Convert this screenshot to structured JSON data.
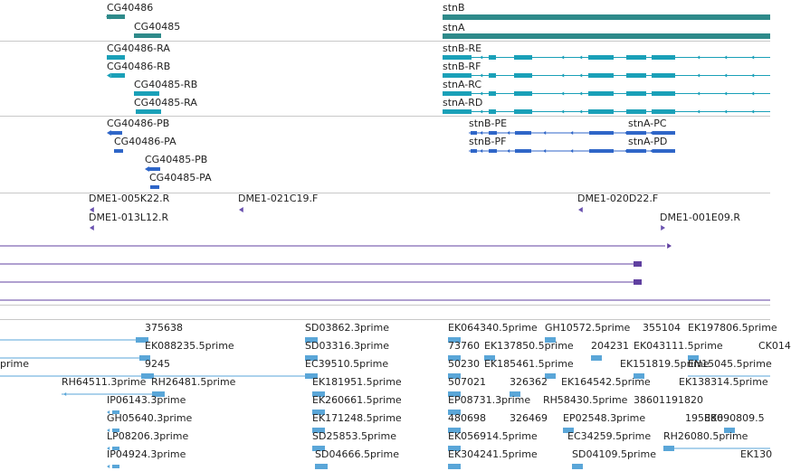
{
  "colors": {
    "gene": "#2e8a8a",
    "transcript": "#1aa0b8",
    "cds": "#2f66c8",
    "marker": "#6a52b0",
    "purple_line": "#6040a0",
    "est": "#5aa6d8",
    "separator": "#c8c8c8"
  },
  "tracks": {
    "genes": [
      "CG40486",
      "CG40485",
      "stnB",
      "stnA"
    ],
    "transcripts": [
      "CG40486-RA",
      "CG40486-RB",
      "CG40485-RB",
      "CG40485-RA",
      "stnB-RE",
      "stnB-RF",
      "stnA-RC",
      "stnA-RD"
    ],
    "proteins": [
      "CG40486-PB",
      "CG40486-PA",
      "CG40485-PB",
      "CG40485-PA",
      "stnB-PE",
      "stnB-PF",
      "stnA-PC",
      "stnA-PD"
    ],
    "clones": [
      "DME1-005K22.R",
      "DME1-013L12.R",
      "DME1-021C19.F",
      "DME1-020D22.F",
      "DME1-001E09.R"
    ],
    "ests": [
      "375638",
      "EK088235.5prime",
      "9245",
      "prime",
      "RH64511.3prime",
      "RH26481.5prime",
      "IP06143.3prime",
      "GH05640.3prime",
      "LP08206.3prime",
      "IP04924.3prime",
      "SD03862.3prime",
      "SD03316.3prime",
      "EC39510.5prime",
      "EK181951.5prime",
      "EK260661.5prime",
      "EK171248.5prime",
      "SD25853.5prime",
      "SD04666.5prime",
      "EK064340.5prime",
      "GH10572.5prime",
      "355104",
      "EK197806.5prime",
      "73760",
      "EK137850.5prime",
      "204231",
      "EK043111.5prime",
      "CK014",
      "50230",
      "EK185461.5prime",
      "EK151819.5prime",
      "EN15045.5prime",
      "507021",
      "326362",
      "EK164542.5prime",
      "EK138314.5prime",
      "EP08731.3prime",
      "RH58430.5prime",
      "38601191820",
      "480698",
      "326469",
      "EP02548.3prime",
      "195886",
      "EK090809.5",
      "EK056914.5prime",
      "EC34259.5prime",
      "RH26080.5prime",
      "EK304241.5prime",
      "SD04109.5prime",
      "EK130"
    ]
  }
}
